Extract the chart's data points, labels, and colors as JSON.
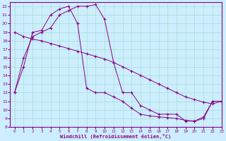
{
  "xlabel": "Windchill (Refroidissement éolien,°C)",
  "bg_color": "#cceeff",
  "line_color": "#880088",
  "grid_color": "#aaddcc",
  "xlim": [
    -0.5,
    23
  ],
  "ylim": [
    8,
    22.5
  ],
  "yticks": [
    8,
    9,
    10,
    11,
    12,
    13,
    14,
    15,
    16,
    17,
    18,
    19,
    20,
    21,
    22
  ],
  "xticks": [
    0,
    1,
    2,
    3,
    4,
    5,
    6,
    7,
    8,
    9,
    10,
    11,
    12,
    13,
    14,
    15,
    16,
    17,
    18,
    19,
    20,
    21,
    22,
    23
  ],
  "series": [
    {
      "x": [
        0,
        1,
        2,
        3,
        4,
        5,
        6,
        7,
        8,
        9,
        10,
        11,
        12,
        13,
        14,
        15,
        16,
        17,
        18,
        19,
        20,
        21,
        22,
        23
      ],
      "y": [
        12,
        16,
        18.5,
        19,
        19.5,
        21,
        21.5,
        22,
        22,
        22.2,
        20.5,
        15.5,
        12,
        12,
        10.5,
        10,
        9.5,
        9.5,
        9.5,
        8.7,
        8.7,
        9.0,
        11.0,
        11.0
      ]
    },
    {
      "x": [
        0,
        1,
        2,
        3,
        4,
        5,
        6,
        7,
        8,
        9,
        10,
        11,
        12,
        13,
        14,
        15,
        16,
        17,
        18,
        19,
        20,
        21,
        22,
        23
      ],
      "y": [
        19,
        18.5,
        18.2,
        18.0,
        17.7,
        17.4,
        17.1,
        16.8,
        16.5,
        16.2,
        15.9,
        15.5,
        15.0,
        14.5,
        14.0,
        13.5,
        13.0,
        12.5,
        12.0,
        11.5,
        11.2,
        10.9,
        10.7,
        11.0
      ]
    },
    {
      "x": [
        0,
        1,
        2,
        3,
        4,
        5,
        6,
        7,
        8,
        9,
        10,
        11,
        12,
        13,
        14,
        15,
        16,
        17,
        18,
        19,
        20,
        21,
        22,
        23
      ],
      "y": [
        12,
        15,
        19,
        19.2,
        21,
        21.7,
        22,
        20,
        12.5,
        12,
        12,
        11.5,
        11,
        10.2,
        9.5,
        9.3,
        9.2,
        9.1,
        9.0,
        8.8,
        8.7,
        9.2,
        11.0,
        11.0
      ]
    }
  ]
}
